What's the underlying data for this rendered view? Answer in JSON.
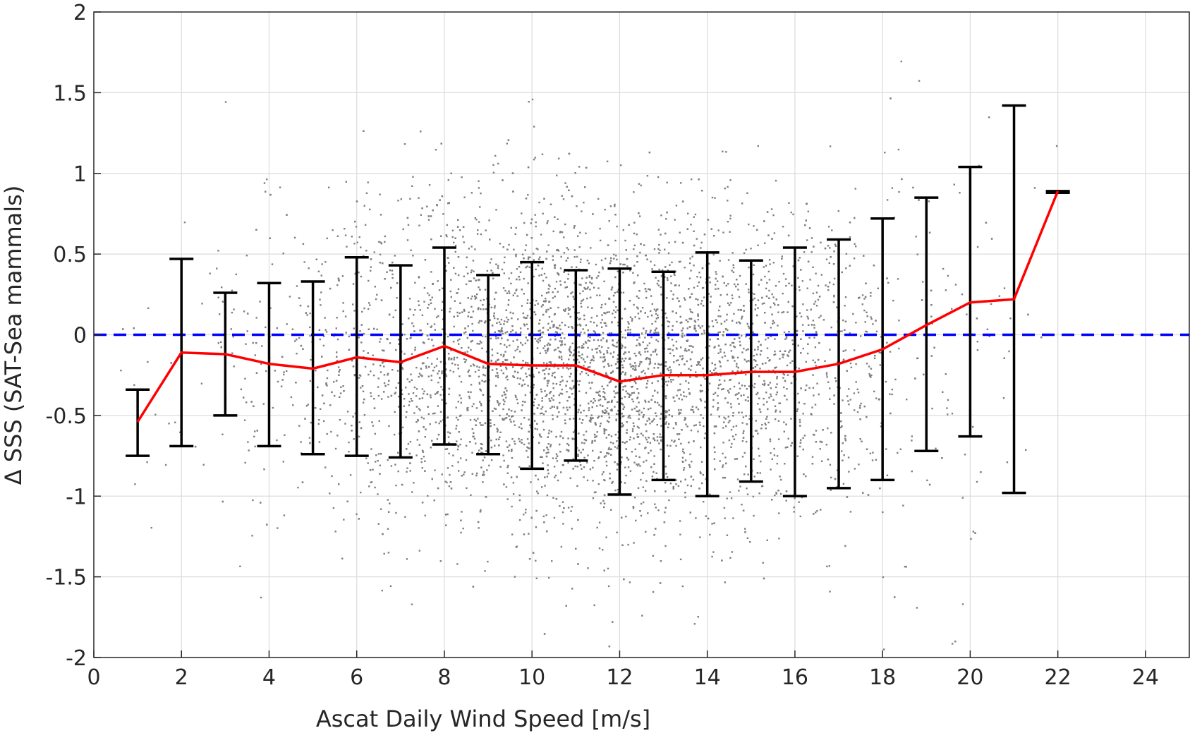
{
  "chart_data": {
    "type": "scatter",
    "xlabel": "Ascat Daily Wind Speed [m/s]",
    "ylabel": "Δ SSS (SAT-Sea mammals)",
    "xlim": [
      0,
      25
    ],
    "ylim": [
      -2,
      2
    ],
    "x_ticks": [
      0,
      2,
      4,
      6,
      8,
      10,
      12,
      14,
      16,
      18,
      20,
      22,
      24
    ],
    "y_ticks": [
      -2,
      -1.5,
      -1,
      -0.5,
      0,
      0.5,
      1,
      1.5,
      2
    ],
    "y_tick_labels": [
      "-2",
      "-1.5",
      "-1",
      "-0.5",
      "0",
      "0.5",
      "1",
      "1.5",
      "2"
    ],
    "grid": true,
    "colors": {
      "scatter": "#7f7f7f",
      "mean_line": "#ff0000",
      "reference_line": "#0000ff",
      "error_bars": "#000000",
      "grid": "#dcdcdc",
      "axis": "#262626"
    },
    "reference_line": {
      "y": 0,
      "style": "dashed"
    },
    "scatter_note": "dense cloud of grey points, roughly centred on -0.2, widest spread between 8 and 16 m/s",
    "series": [
      {
        "type": "line",
        "x": [
          1,
          2,
          3,
          4,
          5,
          6,
          7,
          8,
          9,
          10,
          11,
          12,
          13,
          14,
          15,
          16,
          17,
          18,
          19,
          20,
          21,
          22
        ],
        "y": [
          -0.54,
          -0.11,
          -0.12,
          -0.18,
          -0.21,
          -0.14,
          -0.17,
          -0.07,
          -0.18,
          -0.19,
          -0.19,
          -0.29,
          -0.25,
          -0.25,
          -0.23,
          -0.23,
          -0.18,
          -0.09,
          0.06,
          0.2,
          0.22,
          0.89
        ]
      },
      {
        "type": "errorbar",
        "x": [
          1,
          2,
          3,
          4,
          5,
          6,
          7,
          8,
          9,
          10,
          11,
          12,
          13,
          14,
          15,
          16,
          17,
          18,
          19,
          20,
          21,
          22
        ],
        "lower": [
          -0.75,
          -0.69,
          -0.5,
          -0.69,
          -0.74,
          -0.75,
          -0.76,
          -0.68,
          -0.74,
          -0.83,
          -0.78,
          -0.99,
          -0.9,
          -1.0,
          -0.91,
          -1.0,
          -0.95,
          -0.9,
          -0.72,
          -0.63,
          -0.98,
          0.88
        ],
        "upper": [
          -0.34,
          0.47,
          0.26,
          0.32,
          0.33,
          0.48,
          0.43,
          0.54,
          0.37,
          0.45,
          0.4,
          0.41,
          0.39,
          0.51,
          0.46,
          0.54,
          0.59,
          0.72,
          0.85,
          1.04,
          1.42,
          0.89
        ]
      }
    ]
  }
}
